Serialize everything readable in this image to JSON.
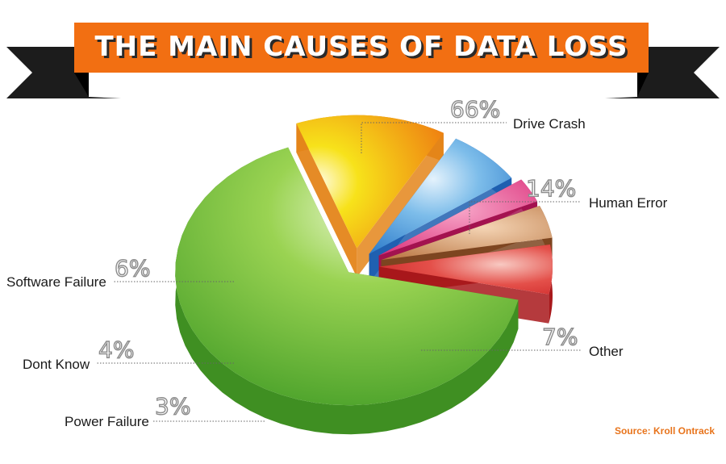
{
  "title": "THE MAIN CAUSES OF DATA LOSS",
  "source": "Source: Kroll Ontrack",
  "colors": {
    "banner": "#f26f12",
    "ribbon": "#1c1c1c",
    "drive_crash": "#6cbf30",
    "human_error": "#f5c21c",
    "other": "#2f86d8",
    "power_failure": "#d61a6c",
    "dont_know": "#b36a34",
    "software_failure": "#d9262a",
    "source_text": "#e8741c"
  },
  "chart_data": {
    "type": "pie",
    "title": "THE MAIN CAUSES OF DATA LOSS",
    "labels": [
      "Drive Crash",
      "Human Error",
      "Other",
      "Power Failure",
      "Dont Know",
      "Software Failure"
    ],
    "values": [
      66,
      14,
      7,
      3,
      4,
      6
    ],
    "value_labels": [
      "66%",
      "14%",
      "7%",
      "3%",
      "4%",
      "6%"
    ],
    "style": "3d exploded"
  }
}
